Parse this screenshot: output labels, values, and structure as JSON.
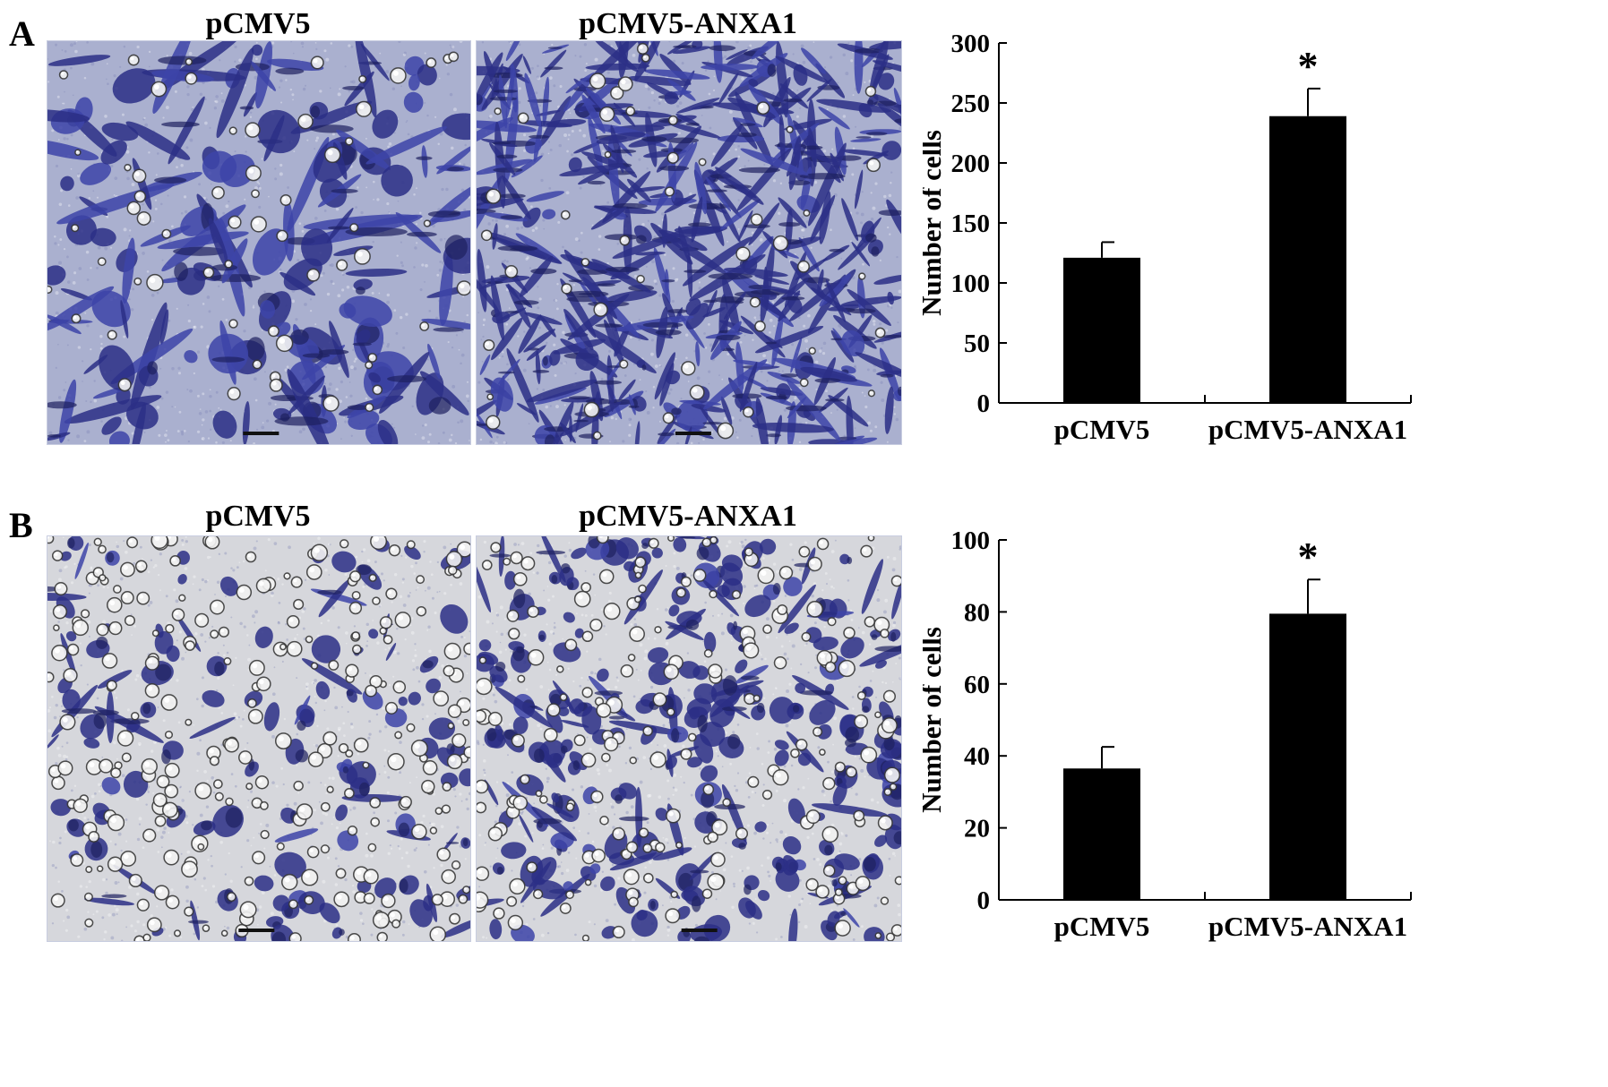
{
  "panels": [
    {
      "letter": "A",
      "images": [
        {
          "title": "pCMV5",
          "stain": "dense-violet"
        },
        {
          "title": "pCMV5-ANXA1",
          "stain": "dense-violet"
        }
      ]
    },
    {
      "letter": "B",
      "images": [
        {
          "title": "pCMV5",
          "stain": "light-violet"
        },
        {
          "title": "pCMV5-ANXA1",
          "stain": "light-violet"
        }
      ]
    }
  ],
  "colors": {
    "bar": "#000000",
    "stain_dark": "#2b2f86",
    "stain_mid": "#3d44a8",
    "background_A": "#aab0cf",
    "background_B": "#d6d7dc"
  },
  "chart_data": [
    {
      "type": "bar",
      "categories": [
        "pCMV5",
        "pCMV5-ANXA1"
      ],
      "values": [
        121,
        239
      ],
      "error": [
        13,
        23
      ],
      "significance": [
        "",
        "*"
      ],
      "ylabel": "Number of cells",
      "ylim": [
        0,
        300
      ],
      "yticks": [
        "0",
        "50",
        "100",
        "150",
        "200",
        "250",
        "300"
      ],
      "grid": false
    },
    {
      "type": "bar",
      "categories": [
        "pCMV5",
        "pCMV5-ANXA1"
      ],
      "values": [
        36.5,
        79.5
      ],
      "error": [
        6,
        9.5
      ],
      "significance": [
        "",
        "*"
      ],
      "ylabel": "Number of cells",
      "ylim": [
        0,
        100
      ],
      "yticks": [
        "0",
        "20",
        "40",
        "60",
        "80",
        "100"
      ],
      "grid": false
    }
  ]
}
